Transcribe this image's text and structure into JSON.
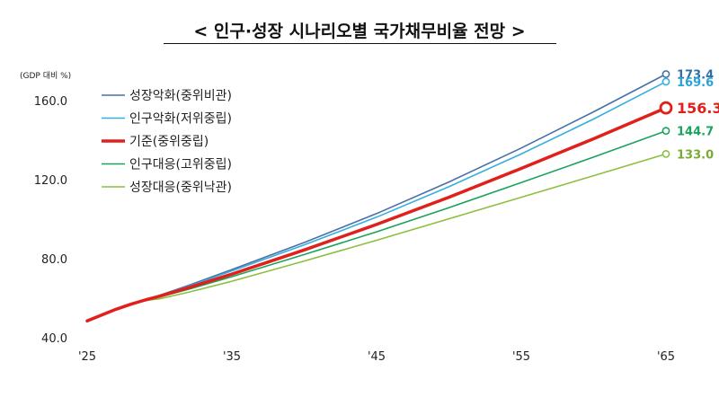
{
  "chart_data": {
    "type": "line",
    "title": "< 인구·성장 시나리오별 국가채무비율 전망 >",
    "unit_label": "(GDP 대비 %)",
    "xlabel": "",
    "ylabel": "",
    "xlim": [
      2025,
      2065
    ],
    "ylim": [
      40,
      170
    ],
    "x_ticks": [
      2025,
      2035,
      2045,
      2055,
      2065
    ],
    "x_tick_labels": [
      "'25",
      "'35",
      "'45",
      "'55",
      "'65"
    ],
    "y_ticks": [
      40,
      80,
      120,
      160
    ],
    "y_tick_labels": [
      "40.0",
      "80.0",
      "120.0",
      "160.0"
    ],
    "grid": false,
    "legend_position": "top-left",
    "x": [
      2025,
      2026,
      2027,
      2028,
      2029,
      2030,
      2032,
      2035,
      2040,
      2045,
      2050,
      2055,
      2060,
      2065
    ],
    "series": [
      {
        "name": "성장악화(중위비관)",
        "color": "#4a6fa5",
        "end_label": "173.4",
        "end_label_color": "#2e6fa8",
        "emphasis": false,
        "values": [
          48.5,
          51.5,
          54.4,
          56.9,
          59.1,
          61.5,
          66.5,
          74.5,
          88.2,
          102.8,
          118.8,
          136.0,
          154.3,
          173.4
        ]
      },
      {
        "name": "인구악화(저위중립)",
        "color": "#35aee0",
        "end_label": "169.6",
        "end_label_color": "#2aa3d8",
        "emphasis": false,
        "values": [
          48.5,
          51.5,
          54.4,
          56.9,
          59.1,
          61.3,
          66.0,
          73.8,
          87.0,
          101.0,
          116.4,
          133.0,
          150.7,
          169.6
        ]
      },
      {
        "name": "기준(중위중립)",
        "color": "#e0201b",
        "end_label": "156.3",
        "end_label_color": "#e0201b",
        "emphasis": true,
        "values": [
          48.5,
          51.5,
          54.4,
          56.9,
          59.1,
          61.0,
          65.3,
          72.2,
          84.4,
          97.3,
          111.1,
          125.7,
          140.7,
          156.3
        ]
      },
      {
        "name": "인구대응(고위중립)",
        "color": "#1aa35a",
        "end_label": "144.7",
        "end_label_color": "#1aa35a",
        "emphasis": false,
        "values": [
          48.5,
          51.5,
          54.4,
          56.9,
          59.1,
          60.6,
          64.5,
          70.9,
          82.1,
          93.6,
          105.8,
          118.5,
          131.4,
          144.7
        ]
      },
      {
        "name": "성장대응(중위낙관)",
        "color": "#8cbf3f",
        "end_label": "133.0",
        "end_label_color": "#7aaa34",
        "emphasis": false,
        "values": [
          48.5,
          51.5,
          54.4,
          56.9,
          58.8,
          59.7,
          63.0,
          68.6,
          78.8,
          89.3,
          100.2,
          111.1,
          122.0,
          133.0
        ]
      }
    ]
  }
}
